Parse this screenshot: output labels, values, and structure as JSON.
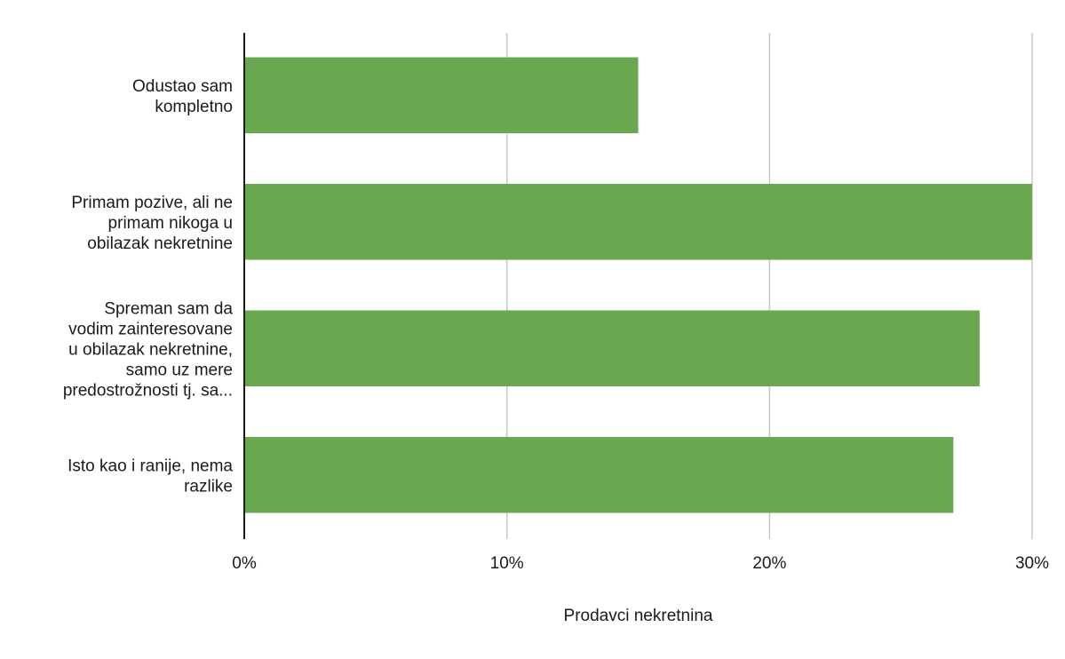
{
  "chart_data": {
    "type": "bar",
    "orientation": "horizontal",
    "categories": [
      [
        "Odustao sam",
        "kompletno"
      ],
      [
        "Primam pozive, ali ne",
        "primam nikoga u",
        "obilazak nekretnine"
      ],
      [
        "Spreman sam da",
        "vodim zainteresovane",
        "u obilazak nekretnine,",
        "samo uz mere",
        "predostrožnosti tj. sa..."
      ],
      [
        "Isto kao i ranije, nema",
        "razlike"
      ]
    ],
    "series": [
      {
        "values": [
          15,
          30,
          28,
          27
        ]
      }
    ],
    "xlabel": "Prodavci nekretnina",
    "ylabel": "",
    "xlim": [
      0,
      30
    ],
    "xticks": [
      0,
      10,
      20,
      30
    ],
    "xtick_labels": [
      "0%",
      "10%",
      "20%",
      "30%"
    ],
    "grid": true,
    "colors": {
      "bar": "#6aa84f",
      "grid": "#c8c8c8",
      "axis": "#1a1a1a"
    }
  }
}
